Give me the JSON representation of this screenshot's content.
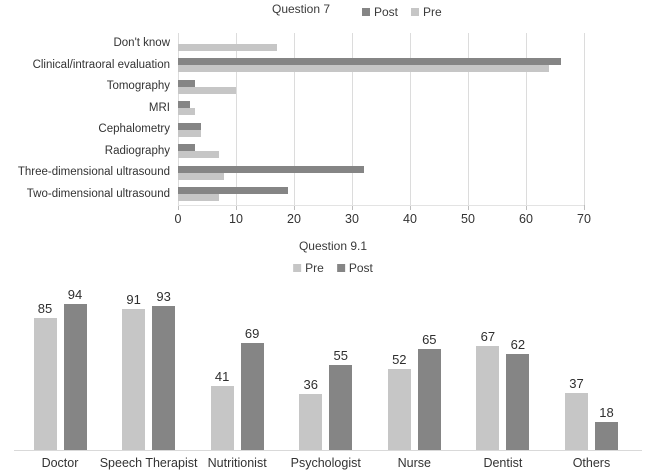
{
  "colors": {
    "post": "#858585",
    "pre": "#c6c6c6",
    "gridline": "#dcdcdc",
    "axis": "#d9d9d9",
    "text": "#333333"
  },
  "chart_data": [
    {
      "type": "bar",
      "orientation": "horizontal",
      "title": "Question 7",
      "legend_position": "top-right",
      "legend": [
        {
          "name": "Post",
          "color_key": "post"
        },
        {
          "name": "Pre",
          "color_key": "pre"
        }
      ],
      "categories": [
        "Don't know",
        "Clinical/intraoral evaluation",
        "Tomography",
        "MRI",
        "Cephalometry",
        "Radiography",
        "Three-dimensional ultrasound",
        "Two-dimensional ultrasound"
      ],
      "series": [
        {
          "name": "Post",
          "values": [
            0,
            66,
            3,
            2,
            4,
            3,
            32,
            19
          ]
        },
        {
          "name": "Pre",
          "values": [
            17,
            64,
            10,
            3,
            4,
            7,
            8,
            7
          ]
        }
      ],
      "xlim": [
        0,
        70
      ],
      "xticks": [
        0,
        10,
        20,
        30,
        40,
        50,
        60,
        70
      ],
      "grid": "vertical-major",
      "data_labels": false
    },
    {
      "type": "bar",
      "orientation": "vertical",
      "title": "Question 9.1",
      "legend_position": "top-center",
      "legend": [
        {
          "name": "Pre",
          "color_key": "pre"
        },
        {
          "name": "Post",
          "color_key": "post"
        }
      ],
      "categories": [
        "Doctor",
        "Speech Therapist",
        "Nutritionist",
        "Psychologist",
        "Nurse",
        "Dentist",
        "Others"
      ],
      "series": [
        {
          "name": "Pre",
          "values": [
            85,
            91,
            41,
            36,
            52,
            67,
            37
          ]
        },
        {
          "name": "Post",
          "values": [
            94,
            93,
            69,
            55,
            65,
            62,
            18
          ]
        }
      ],
      "ylim": [
        0,
        100
      ],
      "grid": "none",
      "data_labels": true
    }
  ]
}
